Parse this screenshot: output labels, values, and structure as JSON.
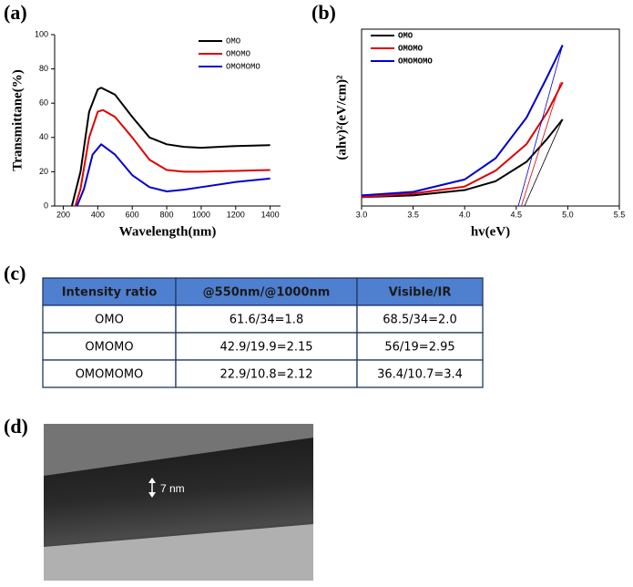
{
  "panels": [
    "(a)",
    "(b)",
    "(c)",
    "(d)"
  ],
  "chart_data": [
    {
      "type": "line",
      "xlabel": "Wavelength(nm)",
      "ylabel": "Transmittane(%)",
      "xlim": [
        150,
        1460
      ],
      "xticks": [
        200,
        400,
        600,
        800,
        1000,
        1200,
        1400
      ],
      "ylim": [
        0,
        100
      ],
      "yticks": [
        0,
        20,
        40,
        60,
        80,
        100
      ],
      "legend": "upper right",
      "series": [
        {
          "name": "OMO",
          "color": "#000000",
          "x": [
            250,
            300,
            350,
            400,
            420,
            500,
            600,
            700,
            800,
            900,
            1000,
            1200,
            1400
          ],
          "values": [
            0,
            20,
            55,
            68,
            69,
            65,
            52,
            40,
            36,
            34.5,
            34,
            35,
            35.5
          ]
        },
        {
          "name": "OMOMO",
          "color": "#e00000",
          "x": [
            270,
            300,
            350,
            400,
            430,
            500,
            600,
            700,
            800,
            900,
            1000,
            1200,
            1400
          ],
          "values": [
            0,
            10,
            40,
            55,
            56,
            52,
            40,
            27,
            21,
            20,
            20,
            20.5,
            21
          ]
        },
        {
          "name": "OMOMOMO",
          "color": "#0000cc",
          "x": [
            280,
            320,
            370,
            420,
            500,
            600,
            700,
            800,
            900,
            1000,
            1200,
            1400
          ],
          "values": [
            0,
            10,
            30,
            36,
            30,
            18,
            11,
            8.5,
            9.5,
            11,
            14,
            16
          ]
        }
      ]
    },
    {
      "type": "line",
      "xlabel": "hv(eV)",
      "ylabel": "(ahv)²(eV/cm)²",
      "xlim": [
        3.0,
        5.5
      ],
      "xticks": [
        {
          "value": 3.0,
          "label": "3.0"
        },
        3.5,
        {
          "value": 4.0,
          "label": "4.0"
        },
        4.5,
        {
          "value": 5.0,
          "label": "5.0"
        },
        5.5
      ],
      "ylim": [
        0,
        10
      ],
      "legend": "upper left",
      "series": [
        {
          "name": "OMO",
          "color": "#000000",
          "x": [
            3.0,
            3.5,
            4.0,
            4.3,
            4.6,
            4.8,
            4.95
          ],
          "values": [
            0.5,
            0.6,
            0.9,
            1.4,
            2.5,
            3.8,
            4.9
          ]
        },
        {
          "name": "OMOMO",
          "color": "#e00000",
          "x": [
            3.0,
            3.5,
            4.0,
            4.3,
            4.6,
            4.8,
            4.95
          ],
          "values": [
            0.5,
            0.7,
            1.1,
            2.0,
            3.5,
            5.3,
            7.0
          ]
        },
        {
          "name": "OMOMOMO",
          "color": "#0000cc",
          "x": [
            3.0,
            3.5,
            4.0,
            4.3,
            4.6,
            4.8,
            4.95
          ],
          "values": [
            0.6,
            0.8,
            1.5,
            2.7,
            5.0,
            7.3,
            9.1
          ]
        }
      ],
      "tangent_lines": [
        {
          "color": "#000000",
          "x": [
            4.58,
            4.95
          ],
          "values": [
            0,
            4.9
          ]
        },
        {
          "color": "#e00000",
          "x": [
            4.55,
            4.93
          ],
          "values": [
            0,
            7.0
          ]
        },
        {
          "color": "#0000cc",
          "x": [
            4.52,
            4.95
          ],
          "values": [
            0,
            9.1
          ]
        }
      ]
    }
  ],
  "table": {
    "header": [
      "Intensity ratio",
      "@550nm/@1000nm",
      "Visible/IR"
    ],
    "rows": [
      [
        "OMO",
        "61.6/34=1.8",
        "68.5/34=2.0"
      ],
      [
        "OMOMO",
        "42.9/19.9=2.15",
        "56/19=2.95"
      ],
      [
        "OMOMOMO",
        "22.9/10.8=2.12",
        "36.4/10.7=3.4"
      ]
    ]
  },
  "image": {
    "scale_label": "7 nm"
  }
}
